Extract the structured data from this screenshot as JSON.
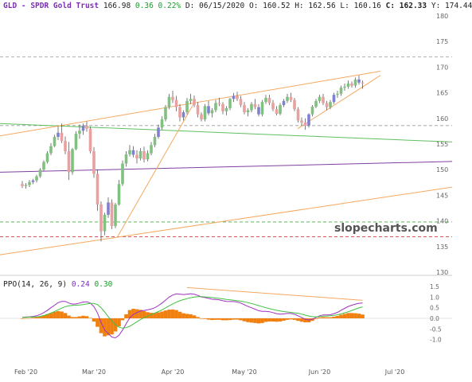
{
  "header": {
    "symbol": "GLD - SPDR Gold Trust",
    "last": "166.98",
    "change": "0.36",
    "change_pct": "0.22%",
    "date_label": "D: 06/15/2020",
    "open_label": "O: 160.52",
    "high_label": "H: 162.56",
    "low_label": "L: 160.16",
    "close_label": "C: 162.33",
    "y_label": "Y: 174.44"
  },
  "watermark": "slopecharts.com",
  "colors": {
    "up_candle": "#80c080",
    "down_candle": "#e8a0a0",
    "neutral_candle": "#8080d0",
    "trend_orange": "#f5a860",
    "trend_green": "#60c060",
    "trend_purple": "#8040a0",
    "hline_red": "#d04040",
    "hline_green": "#40b040",
    "hline_gray": "#999999",
    "ppo_line": "#a030c0",
    "signal_line": "#40c040",
    "histogram": "#f08010"
  },
  "chart_data": [
    {
      "type": "candlestick",
      "title": "GLD - SPDR Gold Trust",
      "ylim": [
        130,
        180
      ],
      "y_ticks": [
        130,
        135,
        140,
        145,
        150,
        155,
        160,
        165,
        170,
        175,
        180
      ],
      "x_ticks": [
        {
          "label": "Feb '20",
          "index": 1
        },
        {
          "label": "Mar '20",
          "index": 20
        },
        {
          "label": "Apr '20",
          "index": 42
        },
        {
          "label": "May '20",
          "index": 62
        },
        {
          "label": "Jun '20",
          "index": 83
        },
        {
          "label": "Jul '20",
          "index": 104
        }
      ],
      "candles": [
        [
          147.2,
          147.8,
          146.4,
          146.8
        ],
        [
          146.8,
          147.4,
          146.3,
          147.0
        ],
        [
          147.0,
          148.0,
          146.6,
          147.6
        ],
        [
          147.6,
          148.2,
          147.2,
          147.9
        ],
        [
          147.9,
          149.0,
          147.5,
          148.7
        ],
        [
          148.7,
          150.3,
          148.4,
          150.0
        ],
        [
          150.0,
          151.8,
          149.8,
          151.5
        ],
        [
          151.5,
          153.6,
          151.2,
          153.2
        ],
        [
          153.2,
          155.2,
          152.8,
          154.6
        ],
        [
          154.6,
          156.8,
          154.4,
          156.4
        ],
        [
          156.4,
          158.5,
          155.8,
          157.2
        ],
        [
          157.2,
          159.0,
          155.2,
          155.6
        ],
        [
          155.6,
          156.5,
          153.0,
          153.6
        ],
        [
          153.6,
          155.4,
          148.0,
          149.5
        ],
        [
          149.5,
          154.2,
          149.0,
          154.0
        ],
        [
          154.0,
          157.5,
          153.8,
          157.0
        ],
        [
          157.0,
          158.8,
          156.0,
          157.6
        ],
        [
          157.6,
          159.0,
          156.8,
          158.6
        ],
        [
          158.6,
          159.4,
          157.4,
          158.0
        ],
        [
          158.0,
          158.4,
          153.2,
          153.6
        ],
        [
          153.6,
          154.4,
          148.4,
          149.2
        ],
        [
          149.2,
          150.0,
          142.0,
          143.2
        ],
        [
          143.2,
          143.8,
          136.0,
          138.0
        ],
        [
          138.0,
          141.6,
          137.2,
          141.2
        ],
        [
          141.2,
          144.6,
          140.6,
          143.6
        ],
        [
          143.6,
          144.2,
          138.4,
          139.0
        ],
        [
          139.0,
          143.5,
          138.6,
          143.2
        ],
        [
          143.2,
          148.0,
          143.0,
          147.2
        ],
        [
          147.2,
          151.8,
          146.8,
          151.2
        ],
        [
          151.2,
          153.6,
          150.6,
          153.0
        ],
        [
          153.0,
          154.8,
          152.6,
          153.8
        ],
        [
          153.8,
          154.6,
          152.4,
          152.9
        ],
        [
          152.9,
          153.8,
          151.2,
          152.2
        ],
        [
          152.2,
          154.2,
          151.8,
          153.6
        ],
        [
          153.6,
          154.5,
          151.4,
          152.0
        ],
        [
          152.0,
          153.8,
          151.6,
          153.2
        ],
        [
          153.2,
          155.4,
          152.8,
          154.8
        ],
        [
          154.8,
          157.0,
          154.4,
          156.4
        ],
        [
          156.4,
          158.8,
          156.0,
          158.2
        ],
        [
          158.2,
          160.4,
          157.8,
          159.8
        ],
        [
          159.8,
          162.6,
          159.4,
          162.2
        ],
        [
          162.2,
          164.8,
          161.8,
          164.2
        ],
        [
          164.2,
          165.4,
          163.0,
          163.6
        ],
        [
          163.6,
          164.4,
          161.4,
          162.2
        ],
        [
          162.2,
          162.8,
          159.4,
          160.2
        ],
        [
          160.2,
          161.6,
          159.6,
          161.2
        ],
        [
          161.2,
          164.0,
          160.8,
          163.4
        ],
        [
          163.4,
          164.8,
          162.8,
          163.8
        ],
        [
          163.8,
          164.5,
          162.2,
          162.6
        ],
        [
          162.6,
          163.2,
          160.2,
          160.8
        ],
        [
          160.8,
          161.2,
          159.4,
          159.8
        ],
        [
          159.8,
          162.8,
          159.4,
          162.4
        ],
        [
          162.4,
          163.4,
          160.6,
          161.0
        ],
        [
          161.0,
          162.0,
          160.2,
          161.6
        ],
        [
          161.6,
          163.6,
          161.2,
          163.0
        ],
        [
          163.0,
          164.0,
          162.4,
          162.8
        ],
        [
          162.8,
          163.2,
          160.8,
          161.4
        ],
        [
          161.4,
          162.4,
          160.6,
          162.0
        ],
        [
          162.0,
          164.0,
          161.6,
          163.8
        ],
        [
          163.8,
          165.0,
          163.2,
          164.4
        ],
        [
          164.4,
          165.2,
          163.4,
          163.8
        ],
        [
          163.8,
          164.4,
          162.2,
          162.6
        ],
        [
          162.6,
          163.2,
          160.8,
          161.2
        ],
        [
          161.2,
          162.0,
          160.4,
          161.6
        ],
        [
          161.6,
          163.2,
          161.2,
          162.8
        ],
        [
          162.8,
          163.8,
          161.8,
          162.2
        ],
        [
          162.2,
          162.8,
          160.4,
          160.8
        ],
        [
          160.8,
          163.6,
          160.4,
          163.2
        ],
        [
          163.2,
          164.6,
          162.8,
          164.0
        ],
        [
          164.0,
          164.6,
          162.6,
          163.0
        ],
        [
          163.0,
          163.6,
          161.4,
          161.8
        ],
        [
          161.8,
          162.4,
          160.6,
          160.9
        ],
        [
          160.9,
          163.0,
          160.6,
          162.6
        ],
        [
          162.6,
          163.8,
          162.2,
          163.4
        ],
        [
          163.4,
          164.8,
          163.0,
          164.2
        ],
        [
          164.2,
          165.0,
          163.2,
          163.6
        ],
        [
          163.6,
          164.0,
          161.4,
          161.8
        ],
        [
          161.8,
          162.2,
          159.2,
          159.6
        ],
        [
          159.6,
          160.2,
          158.6,
          159.2
        ],
        [
          159.2,
          160.0,
          157.8,
          158.6
        ],
        [
          158.6,
          161.0,
          158.2,
          160.8
        ],
        [
          160.8,
          162.6,
          160.4,
          162.3
        ],
        [
          162.3,
          163.8,
          162.0,
          163.4
        ],
        [
          163.4,
          164.6,
          163.0,
          164.2
        ],
        [
          164.2,
          164.8,
          162.6,
          163.0
        ],
        [
          163.0,
          163.4,
          161.6,
          162.2
        ],
        [
          162.2,
          163.6,
          161.8,
          163.2
        ],
        [
          163.2,
          165.0,
          162.8,
          164.6
        ],
        [
          164.6,
          165.4,
          164.0,
          164.8
        ],
        [
          164.8,
          166.4,
          164.4,
          166.0
        ],
        [
          166.0,
          166.8,
          165.4,
          166.2
        ],
        [
          166.2,
          167.4,
          165.8,
          166.8
        ],
        [
          166.8,
          167.2,
          166.0,
          166.4
        ],
        [
          166.4,
          168.0,
          166.0,
          167.6
        ],
        [
          167.6,
          168.4,
          166.6,
          167.0
        ],
        [
          167.0,
          167.4,
          165.8,
          166.98
        ]
      ]
    },
    {
      "type": "line",
      "title": "PPO(14, 26, 9)",
      "legend": [
        "0.24",
        "0.30"
      ],
      "ylim": [
        -1.5,
        1.5
      ],
      "y_ticks": [
        "1.5",
        "1.0",
        "0.5",
        "0.0",
        "-0.5",
        "-1.0"
      ],
      "series": [
        {
          "name": "0.24",
          "values": [
            0.05,
            0.06,
            0.07,
            0.09,
            0.12,
            0.18,
            0.27,
            0.38,
            0.5,
            0.62,
            0.74,
            0.8,
            0.8,
            0.72,
            0.67,
            0.68,
            0.72,
            0.77,
            0.78,
            0.72,
            0.55,
            0.25,
            -0.2,
            -0.55,
            -0.72,
            -0.88,
            -0.92,
            -0.8,
            -0.55,
            -0.25,
            0.02,
            0.18,
            0.27,
            0.34,
            0.37,
            0.4,
            0.44,
            0.5,
            0.6,
            0.72,
            0.86,
            1.0,
            1.1,
            1.15,
            1.14,
            1.12,
            1.14,
            1.16,
            1.14,
            1.08,
            1.01,
            0.98,
            0.94,
            0.9,
            0.89,
            0.87,
            0.83,
            0.8,
            0.79,
            0.79,
            0.77,
            0.72,
            0.64,
            0.56,
            0.5,
            0.43,
            0.36,
            0.33,
            0.33,
            0.31,
            0.27,
            0.22,
            0.2,
            0.21,
            0.23,
            0.23,
            0.19,
            0.12,
            0.04,
            -0.04,
            -0.08,
            -0.04,
            0.04,
            0.12,
            0.16,
            0.16,
            0.17,
            0.22,
            0.28,
            0.38,
            0.47,
            0.56,
            0.62,
            0.67,
            0.71,
            0.72
          ]
        },
        {
          "name": "0.30",
          "values": [
            0.05,
            0.05,
            0.06,
            0.06,
            0.07,
            0.09,
            0.13,
            0.18,
            0.25,
            0.32,
            0.4,
            0.48,
            0.55,
            0.59,
            0.61,
            0.62,
            0.63,
            0.65,
            0.68,
            0.7,
            0.7,
            0.65,
            0.5,
            0.3,
            0.08,
            -0.12,
            -0.3,
            -0.42,
            -0.46,
            -0.44,
            -0.37,
            -0.27,
            -0.16,
            -0.06,
            0.03,
            0.11,
            0.18,
            0.25,
            0.32,
            0.4,
            0.49,
            0.59,
            0.68,
            0.76,
            0.83,
            0.88,
            0.93,
            0.97,
            1.0,
            1.02,
            1.02,
            1.01,
            1.0,
            0.98,
            0.96,
            0.94,
            0.92,
            0.89,
            0.87,
            0.85,
            0.83,
            0.81,
            0.78,
            0.74,
            0.7,
            0.65,
            0.6,
            0.55,
            0.5,
            0.46,
            0.42,
            0.38,
            0.35,
            0.32,
            0.3,
            0.28,
            0.26,
            0.24,
            0.2,
            0.15,
            0.11,
            0.08,
            0.07,
            0.08,
            0.1,
            0.11,
            0.12,
            0.14,
            0.17,
            0.21,
            0.26,
            0.31,
            0.37,
            0.43,
            0.49,
            0.54
          ]
        }
      ],
      "histogram": [
        0.0,
        0.01,
        0.01,
        0.03,
        0.05,
        0.09,
        0.14,
        0.2,
        0.25,
        0.3,
        0.34,
        0.32,
        0.25,
        0.13,
        0.06,
        0.06,
        0.09,
        0.12,
        0.1,
        0.02,
        -0.15,
        -0.4,
        -0.7,
        -0.85,
        -0.8,
        -0.76,
        -0.62,
        -0.38,
        -0.09,
        0.19,
        0.39,
        0.45,
        0.43,
        0.4,
        0.34,
        0.29,
        0.26,
        0.25,
        0.28,
        0.32,
        0.37,
        0.41,
        0.42,
        0.39,
        0.31,
        0.24,
        0.21,
        0.19,
        0.14,
        0.06,
        -0.01,
        -0.03,
        -0.06,
        -0.08,
        -0.07,
        -0.07,
        -0.09,
        -0.09,
        -0.08,
        -0.06,
        -0.06,
        -0.09,
        -0.14,
        -0.18,
        -0.2,
        -0.22,
        -0.24,
        -0.22,
        -0.17,
        -0.15,
        -0.15,
        -0.16,
        -0.15,
        -0.11,
        -0.07,
        -0.05,
        -0.07,
        -0.12,
        -0.16,
        -0.19,
        -0.19,
        -0.12,
        -0.03,
        0.04,
        0.06,
        0.05,
        0.05,
        0.08,
        0.11,
        0.17,
        0.21,
        0.25,
        0.25,
        0.24,
        0.22,
        0.18
      ]
    }
  ]
}
